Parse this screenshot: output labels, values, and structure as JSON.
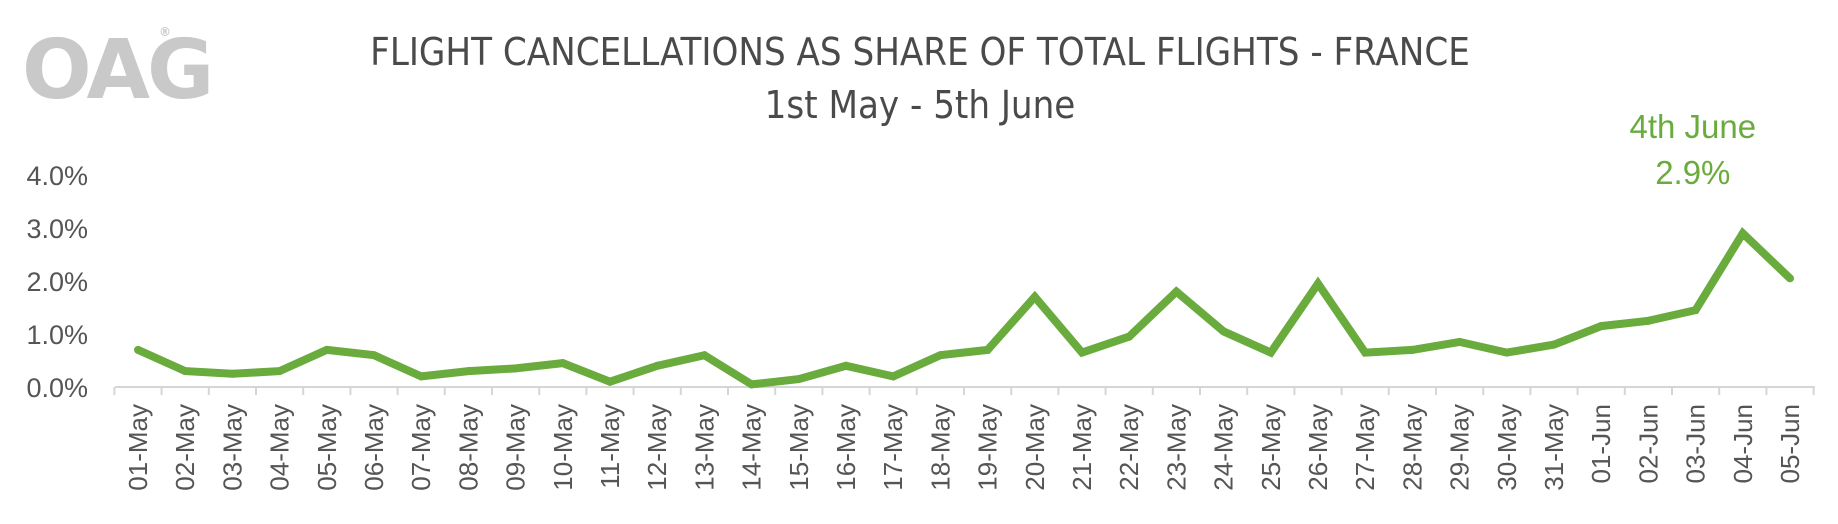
{
  "brand": {
    "logo_text": "OAG",
    "trademark": "®"
  },
  "chart_data": {
    "type": "line",
    "title": "FLIGHT CANCELLATIONS AS SHARE OF TOTAL FLIGHTS - FRANCE",
    "subtitle": "1st May - 5th June",
    "xlabel": "",
    "ylabel": "",
    "ylim": [
      0,
      4
    ],
    "yticks": [
      "0.0%",
      "1.0%",
      "2.0%",
      "3.0%",
      "4.0%"
    ],
    "grid": false,
    "line_color": "#6aab3d",
    "categories": [
      "01-May",
      "02-May",
      "03-May",
      "04-May",
      "05-May",
      "06-May",
      "07-May",
      "08-May",
      "09-May",
      "10-May",
      "11-May",
      "12-May",
      "13-May",
      "14-May",
      "15-May",
      "16-May",
      "17-May",
      "18-May",
      "19-May",
      "20-May",
      "21-May",
      "22-May",
      "23-May",
      "24-May",
      "25-May",
      "26-May",
      "27-May",
      "28-May",
      "29-May",
      "30-May",
      "31-May",
      "01-Jun",
      "02-Jun",
      "03-Jun",
      "04-Jun",
      "05-Jun"
    ],
    "series": [
      {
        "values": [
          0.7,
          0.3,
          0.25,
          0.3,
          0.7,
          0.6,
          0.2,
          0.3,
          0.35,
          0.45,
          0.1,
          0.4,
          0.6,
          0.05,
          0.15,
          0.4,
          0.2,
          0.6,
          0.7,
          1.7,
          0.65,
          0.95,
          1.8,
          1.05,
          0.65,
          1.95,
          0.65,
          0.7,
          0.85,
          0.65,
          0.8,
          1.15,
          1.25,
          1.45,
          2.9,
          2.05
        ]
      }
    ],
    "annotation": {
      "category": "04-Jun",
      "line1": "4th June",
      "line2": "2.9%"
    }
  }
}
